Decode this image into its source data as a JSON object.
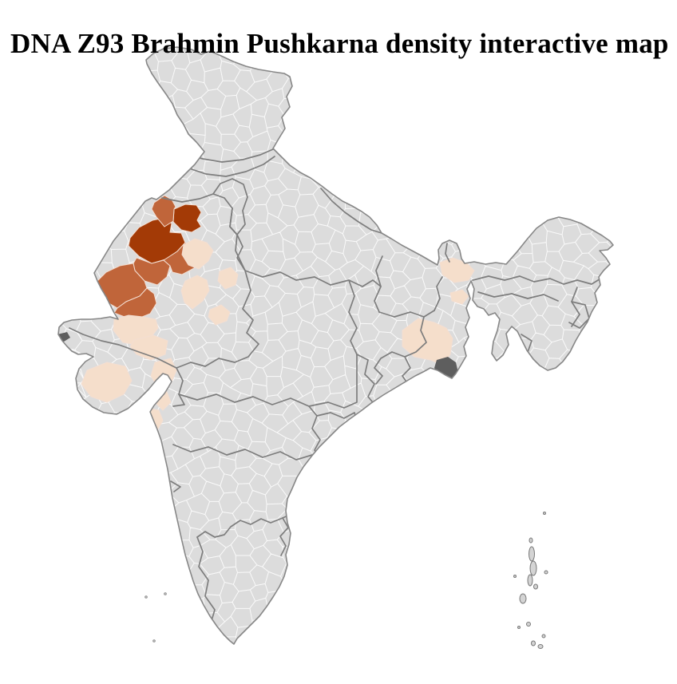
{
  "title": "DNA Z93 Brahmin Pushkarna density interactive map",
  "map": {
    "description": "India district-level choropleth",
    "colors": {
      "background": "#ffffff",
      "land": "#dcdcdc",
      "district_border": "#ffffff",
      "state_border": "#7d7d7d",
      "outline": "#878787",
      "delta": "#5e5e5e"
    },
    "density_levels": {
      "high": "#a33a06",
      "medium": "#c0653a",
      "low": "#f5decb"
    },
    "regions": [
      {
        "id": "nw-high-1",
        "level": "high"
      },
      {
        "id": "nw-high-2",
        "level": "high"
      },
      {
        "id": "nw-med-1",
        "level": "medium"
      },
      {
        "id": "nw-med-2",
        "level": "medium"
      },
      {
        "id": "nw-med-3",
        "level": "medium"
      },
      {
        "id": "nw-med-4",
        "level": "medium"
      },
      {
        "id": "nw-med-5",
        "level": "medium"
      },
      {
        "id": "nw-low-1",
        "level": "low"
      },
      {
        "id": "nw-low-2",
        "level": "low"
      },
      {
        "id": "nw-low-3",
        "level": "low"
      },
      {
        "id": "nw-low-4",
        "level": "low"
      },
      {
        "id": "nw-low-5",
        "level": "low"
      },
      {
        "id": "west-low-1",
        "level": "low"
      },
      {
        "id": "west-low-2",
        "level": "low"
      },
      {
        "id": "west-low-3",
        "level": "low"
      },
      {
        "id": "west-low-4",
        "level": "low"
      },
      {
        "id": "west-low-5",
        "level": "low"
      },
      {
        "id": "east-low-1",
        "level": "low"
      },
      {
        "id": "east-low-2",
        "level": "low"
      },
      {
        "id": "east-low-3",
        "level": "low"
      }
    ]
  }
}
